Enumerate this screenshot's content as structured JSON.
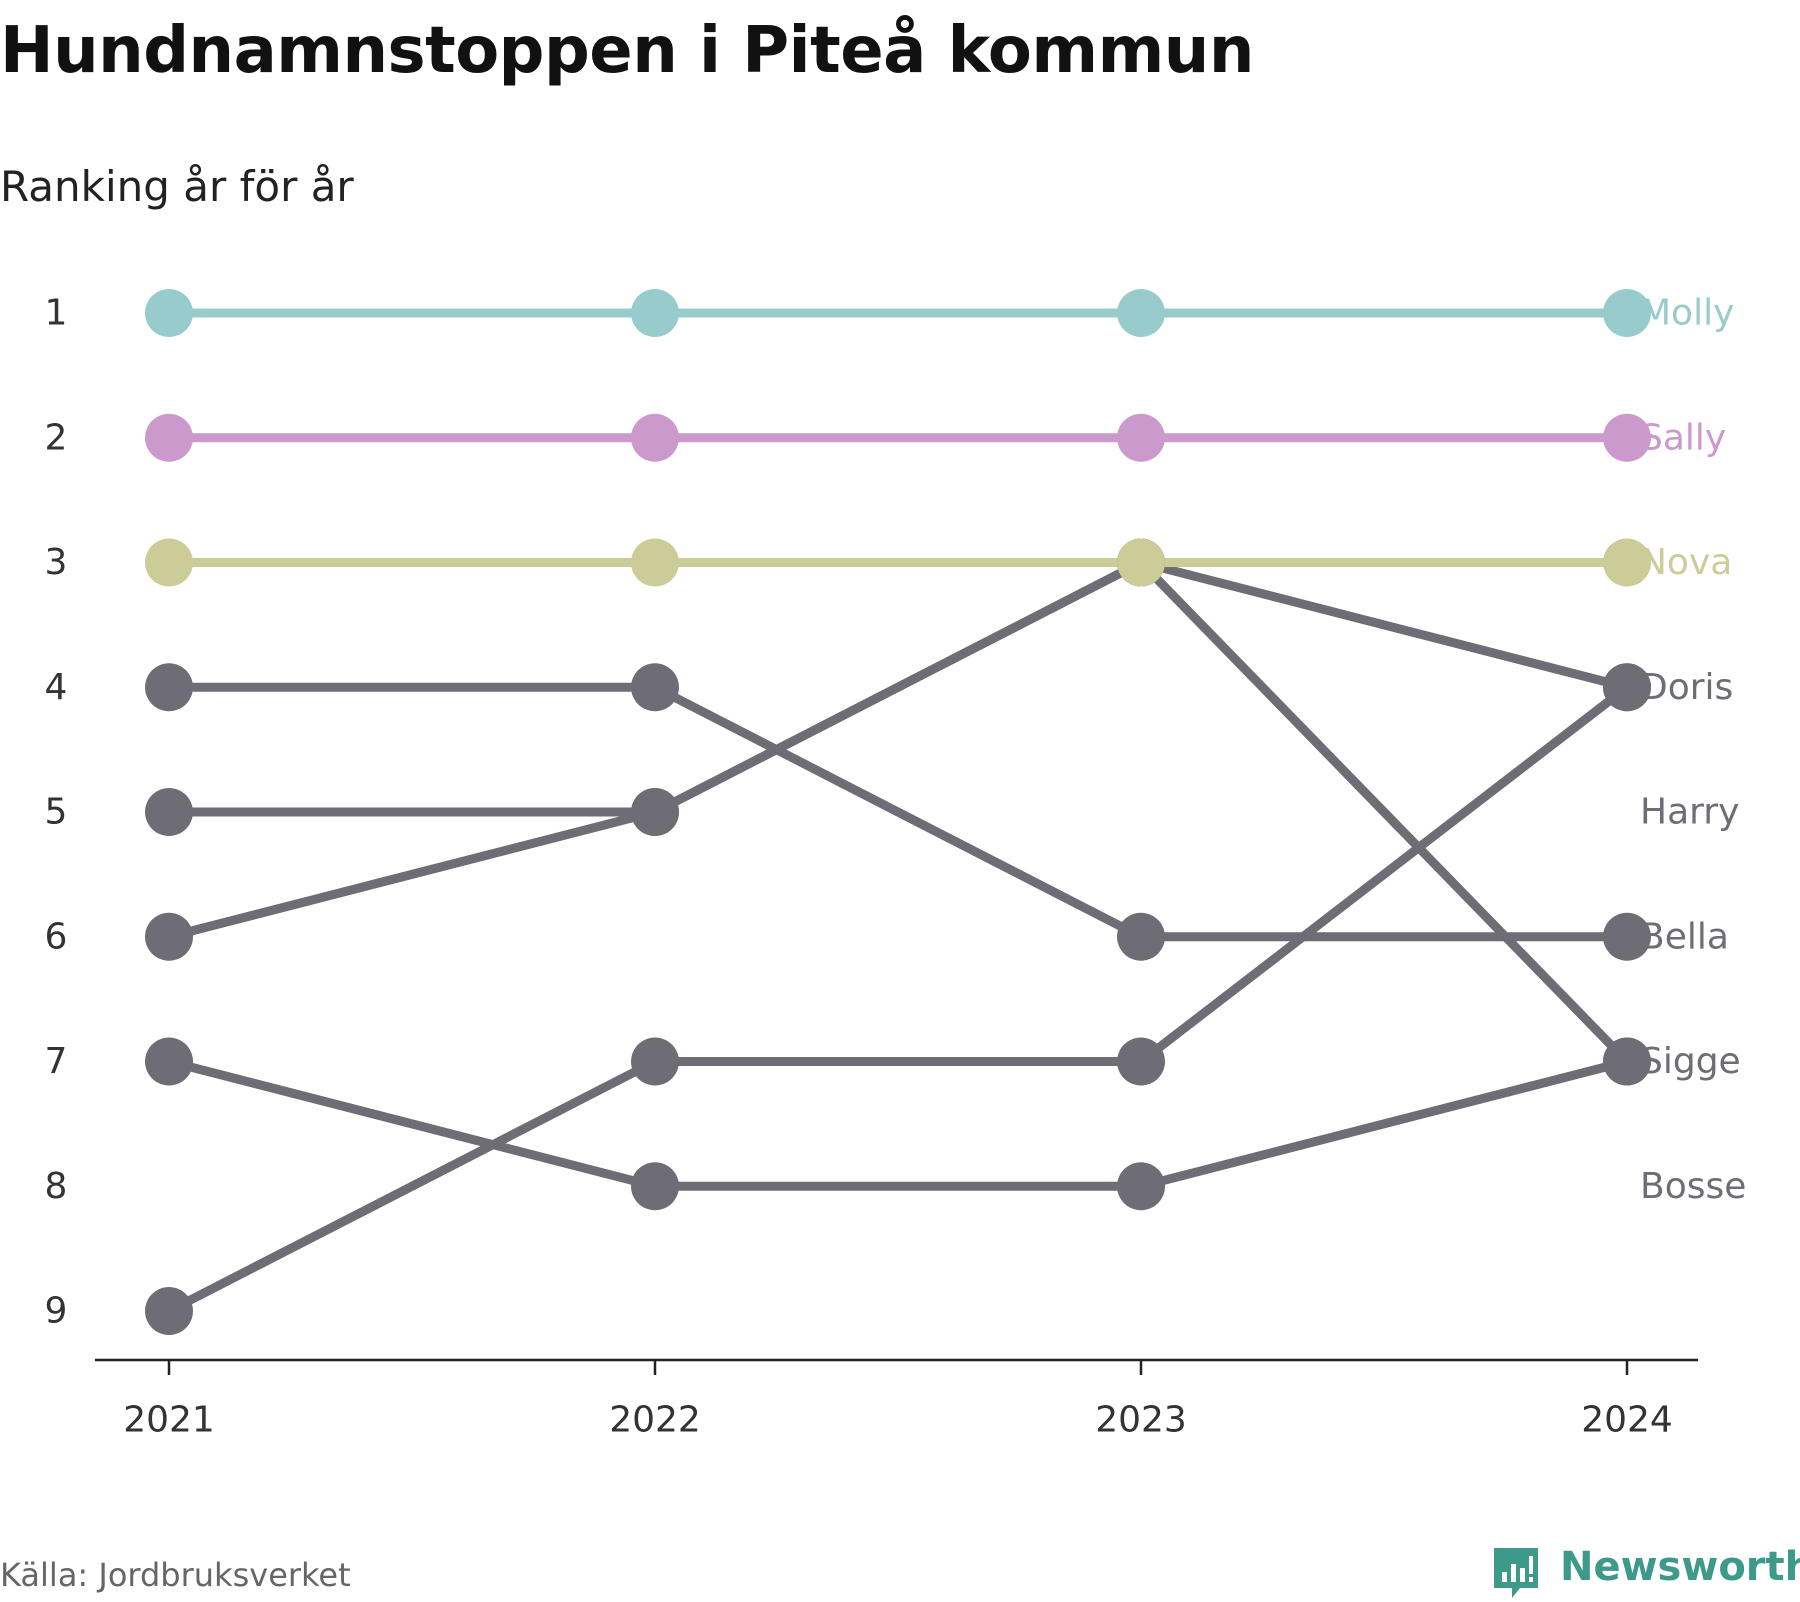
{
  "chart_data": {
    "type": "line",
    "title": "Hundnamnstoppen i Piteå kommun",
    "subtitle": "Ranking år för år",
    "xlabel": "",
    "ylabel": "",
    "x": [
      "2021",
      "2022",
      "2023",
      "2024"
    ],
    "y_ticks": [
      "1",
      "2",
      "3",
      "4",
      "5",
      "6",
      "7",
      "8",
      "9"
    ],
    "ylim": [
      1,
      9
    ],
    "y_reversed": true,
    "grid": false,
    "series": [
      {
        "name": "Molly",
        "ranks": [
          1,
          1,
          1,
          1
        ],
        "color": "#98cccc"
      },
      {
        "name": "Sally",
        "ranks": [
          2,
          2,
          2,
          2
        ],
        "color": "#cc99cc"
      },
      {
        "name": "Nova",
        "ranks": [
          3,
          3,
          3,
          3
        ],
        "color": "#cccc99"
      },
      {
        "name": "Doris",
        "ranks": [
          6,
          5,
          3,
          4
        ],
        "color": "#6e6d75"
      },
      {
        "name": "Harry",
        "ranks": [
          null,
          null,
          null,
          null
        ],
        "color": "#6e6d75"
      },
      {
        "name": "Bella",
        "ranks": [
          4,
          4,
          6,
          6
        ],
        "color": "#6e6d75"
      },
      {
        "name": "Sigge",
        "ranks": [
          5,
          5,
          3,
          7
        ],
        "color": "#6e6d75"
      },
      {
        "name": "Bosse",
        "ranks": [
          null,
          null,
          null,
          null
        ],
        "color": "#6e6d75"
      },
      {
        "name": "",
        "ranks": [
          9,
          7,
          7,
          4
        ],
        "color": "#6e6d75"
      },
      {
        "name": "",
        "ranks": [
          7,
          8,
          8,
          7
        ],
        "color": "#6e6d75"
      }
    ],
    "label_ranks": {
      "Molly": 1,
      "Sally": 2,
      "Nova": 3,
      "Doris": 4,
      "Harry": 5,
      "Bella": 6,
      "Sigge": 7,
      "Bosse": 8
    }
  },
  "source": "Källa: Jordbruksverket",
  "brand": {
    "name": "Newsworthy",
    "icon": "newsworthy-logo-icon",
    "color": "#3d9a8b"
  },
  "colors": {
    "axis": "#222222",
    "tick_text": "#333333",
    "gray_series": "#6e6d75"
  }
}
